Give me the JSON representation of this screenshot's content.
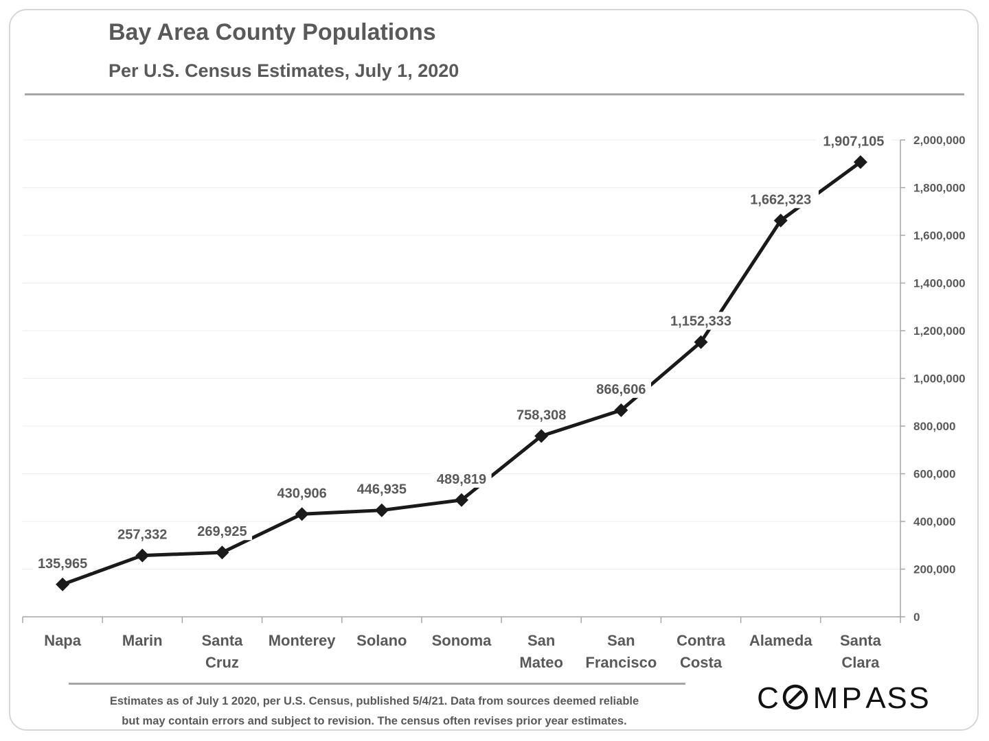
{
  "title": "Bay Area County Populations",
  "subtitle": "Per U.S. Census Estimates, July 1, 2020",
  "footnote": {
    "line1": "Estimates as of July 1 2020, per U.S. Census, published 5/4/21. Data from sources deemed reliable",
    "line2": "but may contain errors and subject to revision.  The census often revises prior year estimates."
  },
  "logo": {
    "text": "COMPASS",
    "color": "#111111"
  },
  "colors": {
    "line": "#1a1a1a",
    "text": "#595959",
    "grid": "#ececec",
    "axis": "#a6a6a6"
  },
  "chart_data": {
    "type": "line",
    "title": "Bay Area County Populations",
    "subtitle": "Per U.S. Census Estimates, July 1, 2020",
    "categories": [
      [
        "Napa"
      ],
      [
        "Marin"
      ],
      [
        "Santa",
        "Cruz"
      ],
      [
        "Monterey"
      ],
      [
        "Solano"
      ],
      [
        "Sonoma"
      ],
      [
        "San",
        "Mateo"
      ],
      [
        "San",
        "Francisco"
      ],
      [
        "Contra",
        "Costa"
      ],
      [
        "Alameda"
      ],
      [
        "Santa",
        "Clara"
      ]
    ],
    "values": [
      135965,
      257332,
      269925,
      430906,
      446935,
      489819,
      758308,
      866606,
      1152333,
      1662323,
      1907105
    ],
    "value_labels": [
      "135,965",
      "257,332",
      "269,925",
      "430,906",
      "446,935",
      "489,819",
      "758,308",
      "866,606",
      "1,152,333",
      "1,662,323",
      "1,907,105"
    ],
    "ylim": [
      0,
      2000000
    ],
    "yticks": [
      0,
      200000,
      400000,
      600000,
      800000,
      1000000,
      1200000,
      1400000,
      1600000,
      1800000,
      2000000
    ],
    "ytick_labels": [
      "0",
      "200,000",
      "400,000",
      "600,000",
      "800,000",
      "1,000,000",
      "1,200,000",
      "1,400,000",
      "1,600,000",
      "1,800,000",
      "2,000,000"
    ],
    "y_axis_side": "right",
    "marker": "diamond",
    "grid": true,
    "xlabel": "",
    "ylabel": ""
  }
}
